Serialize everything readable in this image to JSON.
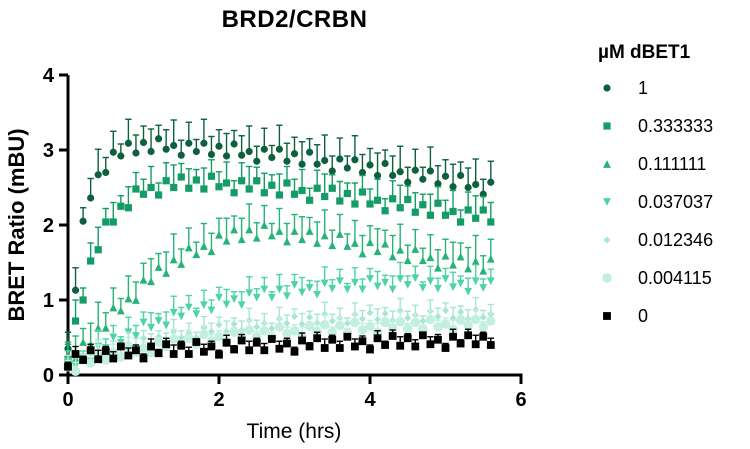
{
  "chart": {
    "title": "BRD2/CRBN",
    "xlabel": "Time (hrs)",
    "ylabel": "BRET Ratio (mBU)"
  },
  "legend": {
    "title": "µM dBET1",
    "items": [
      "1",
      "0.333333",
      "0.111111",
      "0.037037",
      "0.012346",
      "0.004115",
      "0"
    ]
  },
  "chart_data": {
    "type": "scatter",
    "title": "BRD2/CRBN",
    "xlabel": "Time (hrs)",
    "ylabel": "BRET Ratio (mBU)",
    "xlim": [
      0,
      6
    ],
    "ylim": [
      0,
      4
    ],
    "xticks": [
      0,
      2,
      4,
      6
    ],
    "yticks": [
      0,
      1,
      2,
      3,
      4
    ],
    "grid": false,
    "legend_position": "right",
    "error_bars": "sd-upper",
    "x": [
      0,
      0.1,
      0.2,
      0.3,
      0.4,
      0.5,
      0.6,
      0.7,
      0.8,
      0.9,
      1,
      1.1,
      1.2,
      1.3,
      1.4,
      1.5,
      1.6,
      1.7,
      1.8,
      1.9,
      2,
      2.1,
      2.2,
      2.3,
      2.4,
      2.5,
      2.6,
      2.7,
      2.8,
      2.9,
      3,
      3.1,
      3.2,
      3.3,
      3.4,
      3.5,
      3.6,
      3.7,
      3.8,
      3.9,
      4,
      4.1,
      4.2,
      4.3,
      4.4,
      4.5,
      4.6,
      4.7,
      4.8,
      4.9,
      5,
      5.1,
      5.2,
      5.3,
      5.4,
      5.5,
      5.6
    ],
    "series": [
      {
        "name": "1",
        "marker": "circle",
        "color": "#0c603e",
        "size": 7.2,
        "y": [
          0.35,
          1.13,
          2.05,
          2.36,
          2.67,
          2.7,
          2.97,
          2.92,
          3.09,
          2.96,
          3.1,
          2.98,
          3.15,
          3.01,
          3.06,
          2.93,
          3.09,
          2.98,
          3.09,
          2.94,
          3.05,
          2.92,
          3.08,
          2.93,
          2.98,
          2.85,
          3.01,
          2.9,
          3.01,
          2.85,
          2.95,
          2.81,
          2.97,
          2.81,
          2.86,
          2.72,
          2.88,
          2.76,
          2.87,
          2.7,
          2.8,
          2.66,
          2.82,
          2.66,
          2.71,
          2.57,
          2.73,
          2.61,
          2.72,
          2.55,
          2.65,
          2.51,
          2.66,
          2.5,
          2.54,
          2.41,
          2.57
        ],
        "e": [
          0.22,
          0.3,
          0.18,
          0.26,
          0.34,
          0.2,
          0.28,
          0.16,
          0.32,
          0.24,
          0.22,
          0.3,
          0.18,
          0.26,
          0.34,
          0.2,
          0.28,
          0.16,
          0.32,
          0.24,
          0.22,
          0.3,
          0.18,
          0.26,
          0.34,
          0.2,
          0.28,
          0.16,
          0.32,
          0.24,
          0.22,
          0.3,
          0.18,
          0.26,
          0.34,
          0.2,
          0.28,
          0.16,
          0.32,
          0.24,
          0.22,
          0.3,
          0.18,
          0.26,
          0.34,
          0.2,
          0.28,
          0.16,
          0.32,
          0.24,
          0.22,
          0.3,
          0.18,
          0.26,
          0.34,
          0.2,
          0.28
        ]
      },
      {
        "name": "0.333333",
        "marker": "square",
        "color": "#149c66",
        "size": 7.2,
        "y": [
          0.21,
          0.72,
          1.0,
          1.52,
          1.67,
          2.04,
          2.04,
          2.25,
          2.23,
          2.48,
          2.41,
          2.5,
          2.4,
          2.59,
          2.5,
          2.64,
          2.49,
          2.6,
          2.48,
          2.65,
          2.51,
          2.56,
          2.43,
          2.59,
          2.48,
          2.59,
          2.43,
          2.53,
          2.4,
          2.56,
          2.41,
          2.46,
          2.33,
          2.49,
          2.38,
          2.49,
          2.32,
          2.42,
          2.28,
          2.44,
          2.28,
          2.33,
          2.19,
          2.35,
          2.23,
          2.34,
          2.17,
          2.27,
          2.13,
          2.29,
          2.13,
          2.18,
          2.04,
          2.2,
          2.09,
          2.2,
          2.04
        ],
        "e": [
          0.2,
          0.28,
          0.16,
          0.24,
          0.3,
          0.18,
          0.26,
          0.14,
          0.28,
          0.22,
          0.2,
          0.28,
          0.16,
          0.24,
          0.3,
          0.18,
          0.26,
          0.14,
          0.28,
          0.22,
          0.2,
          0.28,
          0.16,
          0.24,
          0.3,
          0.18,
          0.26,
          0.14,
          0.28,
          0.22,
          0.2,
          0.28,
          0.16,
          0.24,
          0.3,
          0.18,
          0.26,
          0.14,
          0.28,
          0.22,
          0.2,
          0.28,
          0.16,
          0.24,
          0.3,
          0.18,
          0.26,
          0.14,
          0.28,
          0.22,
          0.2,
          0.28,
          0.16,
          0.24,
          0.3,
          0.18,
          0.26
        ]
      },
      {
        "name": "0.111111",
        "marker": "triangle-up",
        "color": "#25b377",
        "size": 7.8,
        "y": [
          0.22,
          0.22,
          0.44,
          0.41,
          0.63,
          0.63,
          0.9,
          0.86,
          1.02,
          1.0,
          1.27,
          1.25,
          1.44,
          1.36,
          1.54,
          1.48,
          1.7,
          1.61,
          1.72,
          1.65,
          1.87,
          1.79,
          1.94,
          1.81,
          1.94,
          1.83,
          2.0,
          1.86,
          1.92,
          1.78,
          1.92,
          1.81,
          1.92,
          1.76,
          1.86,
          1.73,
          1.88,
          1.72,
          1.76,
          1.62,
          1.77,
          1.65,
          1.75,
          1.58,
          1.67,
          1.53,
          1.68,
          1.53,
          1.57,
          1.43,
          1.59,
          1.47,
          1.58,
          1.42,
          1.52,
          1.39,
          1.55
        ],
        "e": [
          0.22,
          0.3,
          0.18,
          0.28,
          0.34,
          0.2,
          0.26,
          0.16,
          0.3,
          0.24,
          0.22,
          0.3,
          0.18,
          0.28,
          0.34,
          0.2,
          0.26,
          0.16,
          0.3,
          0.24,
          0.22,
          0.3,
          0.18,
          0.28,
          0.34,
          0.2,
          0.26,
          0.16,
          0.3,
          0.24,
          0.22,
          0.3,
          0.18,
          0.28,
          0.34,
          0.2,
          0.26,
          0.16,
          0.3,
          0.24,
          0.22,
          0.3,
          0.18,
          0.28,
          0.34,
          0.2,
          0.26,
          0.16,
          0.3,
          0.24,
          0.22,
          0.3,
          0.18,
          0.28,
          0.34,
          0.2,
          0.26
        ]
      },
      {
        "name": "0.037037",
        "marker": "triangle-down",
        "color": "#4ed4a4",
        "size": 7.8,
        "y": [
          0.18,
          0.12,
          0.22,
          0.18,
          0.38,
          0.36,
          0.5,
          0.43,
          0.57,
          0.52,
          0.7,
          0.63,
          0.72,
          0.66,
          0.83,
          0.78,
          0.9,
          0.81,
          0.93,
          0.86,
          1.03,
          0.94,
          1.01,
          0.93,
          1.09,
          1.03,
          1.14,
          1.03,
          1.14,
          1.05,
          1.2,
          1.1,
          1.16,
          1.07,
          1.22,
          1.15,
          1.25,
          1.14,
          1.23,
          1.14,
          1.28,
          1.18,
          1.23,
          1.14,
          1.28,
          1.2,
          1.29,
          1.16,
          1.25,
          1.15,
          1.28,
          1.17,
          1.22,
          1.11,
          1.25,
          1.16,
          1.25
        ],
        "e": [
          0.14,
          0.2,
          0.1,
          0.18,
          0.22,
          0.12,
          0.16,
          0.08,
          0.2,
          0.14,
          0.14,
          0.2,
          0.1,
          0.18,
          0.22,
          0.12,
          0.16,
          0.08,
          0.2,
          0.14,
          0.14,
          0.2,
          0.1,
          0.18,
          0.22,
          0.12,
          0.16,
          0.08,
          0.2,
          0.14,
          0.14,
          0.2,
          0.1,
          0.18,
          0.22,
          0.12,
          0.16,
          0.08,
          0.2,
          0.14,
          0.14,
          0.2,
          0.1,
          0.18,
          0.22,
          0.12,
          0.16,
          0.08,
          0.2,
          0.14,
          0.14,
          0.2,
          0.1,
          0.18,
          0.22,
          0.12,
          0.16
        ]
      },
      {
        "name": "0.012346",
        "marker": "diamond",
        "color": "#a7e7cc",
        "size": 7,
        "y": [
          0.16,
          0.09,
          0.2,
          0.15,
          0.31,
          0.25,
          0.32,
          0.27,
          0.42,
          0.38,
          0.49,
          0.41,
          0.51,
          0.44,
          0.58,
          0.5,
          0.56,
          0.5,
          0.63,
          0.58,
          0.67,
          0.58,
          0.68,
          0.6,
          0.73,
          0.64,
          0.69,
          0.62,
          0.75,
          0.69,
          0.78,
          0.68,
          0.77,
          0.69,
          0.81,
          0.72,
          0.76,
          0.69,
          0.81,
          0.75,
          0.83,
          0.74,
          0.82,
          0.73,
          0.86,
          0.76,
          0.8,
          0.72,
          0.85,
          0.78,
          0.86,
          0.76,
          0.84,
          0.75,
          0.87,
          0.77,
          0.81
        ],
        "e": [
          0.1,
          0.14,
          0.08,
          0.12,
          0.16,
          0.09,
          0.13,
          0.07,
          0.15,
          0.11,
          0.1,
          0.14,
          0.08,
          0.12,
          0.16,
          0.09,
          0.13,
          0.07,
          0.15,
          0.11,
          0.1,
          0.14,
          0.08,
          0.12,
          0.16,
          0.09,
          0.13,
          0.07,
          0.15,
          0.11,
          0.1,
          0.14,
          0.08,
          0.12,
          0.16,
          0.09,
          0.13,
          0.07,
          0.15,
          0.11,
          0.1,
          0.14,
          0.08,
          0.12,
          0.16,
          0.09,
          0.13,
          0.07,
          0.15,
          0.11,
          0.1,
          0.14,
          0.08,
          0.12,
          0.16,
          0.09,
          0.13
        ]
      },
      {
        "name": "0.004115",
        "marker": "circle",
        "color": "#c2efdf",
        "size": 9.5,
        "y": [
          0.11,
          0.05,
          0.2,
          0.16,
          0.27,
          0.2,
          0.3,
          0.24,
          0.38,
          0.3,
          0.36,
          0.3,
          0.44,
          0.38,
          0.48,
          0.39,
          0.49,
          0.41,
          0.54,
          0.45,
          0.51,
          0.44,
          0.57,
          0.51,
          0.6,
          0.51,
          0.59,
          0.51,
          0.64,
          0.55,
          0.59,
          0.52,
          0.65,
          0.58,
          0.67,
          0.57,
          0.66,
          0.57,
          0.7,
          0.6,
          0.65,
          0.57,
          0.7,
          0.63,
          0.71,
          0.62,
          0.7,
          0.61,
          0.74,
          0.64,
          0.68,
          0.61,
          0.73,
          0.66,
          0.74,
          0.64,
          0.72
        ],
        "e": [
          0.08,
          0.12,
          0.06,
          0.1,
          0.13,
          0.07,
          0.11,
          0.05,
          0.12,
          0.09,
          0.08,
          0.12,
          0.06,
          0.1,
          0.13,
          0.07,
          0.11,
          0.05,
          0.12,
          0.09,
          0.08,
          0.12,
          0.06,
          0.1,
          0.13,
          0.07,
          0.11,
          0.05,
          0.12,
          0.09,
          0.08,
          0.12,
          0.06,
          0.1,
          0.13,
          0.07,
          0.11,
          0.05,
          0.12,
          0.09,
          0.08,
          0.12,
          0.06,
          0.1,
          0.13,
          0.07,
          0.11,
          0.05,
          0.12,
          0.09,
          0.08,
          0.12,
          0.06,
          0.1,
          0.13,
          0.07,
          0.11
        ]
      },
      {
        "name": "0",
        "marker": "square",
        "color": "#000000",
        "size": 7.8,
        "y": [
          0.11,
          0.28,
          0.2,
          0.33,
          0.21,
          0.32,
          0.22,
          0.38,
          0.26,
          0.33,
          0.22,
          0.38,
          0.29,
          0.41,
          0.28,
          0.39,
          0.28,
          0.44,
          0.31,
          0.38,
          0.27,
          0.43,
          0.34,
          0.46,
          0.33,
          0.43,
          0.33,
          0.48,
          0.35,
          0.42,
          0.31,
          0.46,
          0.38,
          0.49,
          0.36,
          0.47,
          0.36,
          0.51,
          0.38,
          0.45,
          0.34,
          0.49,
          0.4,
          0.52,
          0.39,
          0.49,
          0.38,
          0.53,
          0.41,
          0.47,
          0.36,
          0.51,
          0.42,
          0.53,
          0.41,
          0.51,
          0.4
        ],
        "e": [
          0.06,
          0.1,
          0.05,
          0.08,
          0.12,
          0.06,
          0.09,
          0.04,
          0.1,
          0.07,
          0.06,
          0.1,
          0.05,
          0.08,
          0.12,
          0.06,
          0.09,
          0.04,
          0.1,
          0.07,
          0.06,
          0.1,
          0.05,
          0.08,
          0.12,
          0.06,
          0.09,
          0.04,
          0.1,
          0.07,
          0.06,
          0.1,
          0.05,
          0.08,
          0.12,
          0.06,
          0.09,
          0.04,
          0.1,
          0.07,
          0.06,
          0.1,
          0.05,
          0.08,
          0.12,
          0.06,
          0.09,
          0.04,
          0.1,
          0.07,
          0.06,
          0.1,
          0.05,
          0.08,
          0.12,
          0.06,
          0.09
        ]
      }
    ]
  }
}
